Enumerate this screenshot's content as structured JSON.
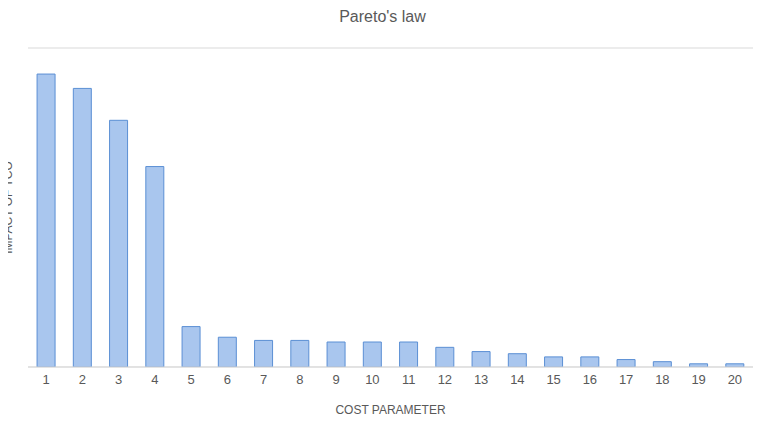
{
  "chart_data": {
    "type": "bar",
    "title": "Pareto's law",
    "x_label": "COST PARAMETER",
    "y_label": "IMPACT OF TCO",
    "categories": [
      "1",
      "2",
      "3",
      "4",
      "5",
      "6",
      "7",
      "8",
      "9",
      "10",
      "11",
      "12",
      "13",
      "14",
      "15",
      "16",
      "17",
      "18",
      "19",
      "20"
    ],
    "values": [
      5.51,
      5.24,
      4.64,
      3.77,
      0.76,
      0.56,
      0.5,
      0.5,
      0.47,
      0.47,
      0.47,
      0.37,
      0.29,
      0.25,
      0.19,
      0.19,
      0.14,
      0.1,
      0.06,
      0.06
    ],
    "color": "#a9c6ee",
    "ylim": [
      0,
      6
    ],
    "yticks": [
      0,
      3,
      4,
      5,
      6
    ],
    "grid": true,
    "tick_labels": "x"
  }
}
